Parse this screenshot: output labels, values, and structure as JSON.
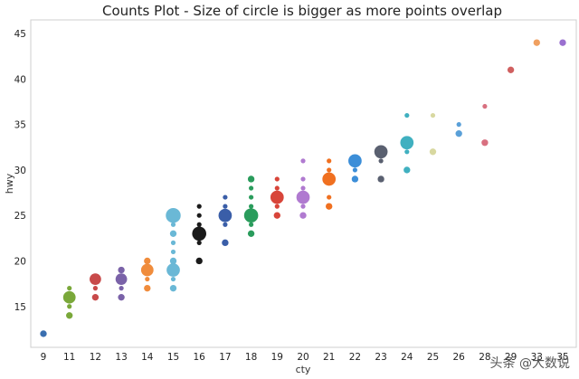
{
  "chart_data": {
    "type": "scatter",
    "title": "Counts Plot - Size of circle is bigger as more points overlap",
    "xlabel": "cty",
    "ylabel": "hwy",
    "categories": [
      "9",
      "11",
      "12",
      "13",
      "14",
      "15",
      "16",
      "17",
      "18",
      "19",
      "20",
      "21",
      "22",
      "23",
      "24",
      "25",
      "26",
      "28",
      "29",
      "33",
      "35"
    ],
    "x_tick_labels_visible": [
      "9",
      "11",
      "12",
      "13",
      "14",
      "15",
      "16",
      "17",
      "18",
      "19",
      "20",
      "21",
      "22",
      "23",
      "24",
      "25",
      "26",
      "28",
      "29",
      "33",
      "35"
    ],
    "y_ticks": [
      15,
      20,
      25,
      30,
      35,
      40,
      45
    ],
    "ylim": [
      10.5,
      46.5
    ],
    "grid": false,
    "legend": false,
    "colors": [
      "#3a6fb0",
      "#7aa83a",
      "#c84a4a",
      "#7a62a8",
      "#f08c3c",
      "#6ab8d6",
      "#1a1a1a",
      "#3a5ea8",
      "#2a9c5c",
      "#d8453a",
      "#b07ad0",
      "#f07020",
      "#3c8ed8",
      "#5a6070",
      "#40b0c0",
      "#d8d8a0",
      "#5aa0d8",
      "#d87080",
      "#d06060",
      "#f0a060",
      "#9a70d0"
    ],
    "points": [
      {
        "x": "9",
        "y": 12,
        "n": 2,
        "c": 0
      },
      {
        "x": "11",
        "y": 14,
        "n": 2,
        "c": 1
      },
      {
        "x": "11",
        "y": 15,
        "n": 1,
        "c": 1
      },
      {
        "x": "11",
        "y": 16,
        "n": 7,
        "c": 1
      },
      {
        "x": "11",
        "y": 17,
        "n": 1,
        "c": 1
      },
      {
        "x": "12",
        "y": 16,
        "n": 2,
        "c": 2
      },
      {
        "x": "12",
        "y": 17,
        "n": 1,
        "c": 2
      },
      {
        "x": "12",
        "y": 18,
        "n": 6,
        "c": 2
      },
      {
        "x": "13",
        "y": 16,
        "n": 2,
        "c": 3
      },
      {
        "x": "13",
        "y": 17,
        "n": 1,
        "c": 3
      },
      {
        "x": "13",
        "y": 18,
        "n": 6,
        "c": 3
      },
      {
        "x": "13",
        "y": 19,
        "n": 2,
        "c": 3
      },
      {
        "x": "14",
        "y": 17,
        "n": 2,
        "c": 4
      },
      {
        "x": "14",
        "y": 18,
        "n": 1,
        "c": 4
      },
      {
        "x": "14",
        "y": 19,
        "n": 7,
        "c": 4
      },
      {
        "x": "14",
        "y": 20,
        "n": 2,
        "c": 4
      },
      {
        "x": "15",
        "y": 17,
        "n": 2,
        "c": 5
      },
      {
        "x": "15",
        "y": 18,
        "n": 1,
        "c": 5
      },
      {
        "x": "15",
        "y": 19,
        "n": 8,
        "c": 5
      },
      {
        "x": "15",
        "y": 20,
        "n": 2,
        "c": 5
      },
      {
        "x": "15",
        "y": 21,
        "n": 1,
        "c": 5
      },
      {
        "x": "15",
        "y": 22,
        "n": 1,
        "c": 5
      },
      {
        "x": "15",
        "y": 23,
        "n": 2,
        "c": 5
      },
      {
        "x": "15",
        "y": 24,
        "n": 1,
        "c": 5
      },
      {
        "x": "15",
        "y": 25,
        "n": 10,
        "c": 5
      },
      {
        "x": "16",
        "y": 20,
        "n": 2,
        "c": 6
      },
      {
        "x": "16",
        "y": 22,
        "n": 1,
        "c": 6
      },
      {
        "x": "16",
        "y": 23,
        "n": 9,
        "c": 6
      },
      {
        "x": "16",
        "y": 24,
        "n": 1,
        "c": 6
      },
      {
        "x": "16",
        "y": 25,
        "n": 1,
        "c": 6
      },
      {
        "x": "16",
        "y": 26,
        "n": 1,
        "c": 6
      },
      {
        "x": "17",
        "y": 22,
        "n": 2,
        "c": 7
      },
      {
        "x": "17",
        "y": 24,
        "n": 1,
        "c": 7
      },
      {
        "x": "17",
        "y": 25,
        "n": 8,
        "c": 7
      },
      {
        "x": "17",
        "y": 26,
        "n": 1,
        "c": 7
      },
      {
        "x": "17",
        "y": 27,
        "n": 1,
        "c": 7
      },
      {
        "x": "18",
        "y": 23,
        "n": 2,
        "c": 8
      },
      {
        "x": "18",
        "y": 24,
        "n": 1,
        "c": 8
      },
      {
        "x": "18",
        "y": 25,
        "n": 9,
        "c": 8
      },
      {
        "x": "18",
        "y": 26,
        "n": 1,
        "c": 8
      },
      {
        "x": "18",
        "y": 27,
        "n": 1,
        "c": 8
      },
      {
        "x": "18",
        "y": 28,
        "n": 1,
        "c": 8
      },
      {
        "x": "18",
        "y": 29,
        "n": 2,
        "c": 8
      },
      {
        "x": "19",
        "y": 25,
        "n": 2,
        "c": 9
      },
      {
        "x": "19",
        "y": 26,
        "n": 1,
        "c": 9
      },
      {
        "x": "19",
        "y": 27,
        "n": 8,
        "c": 9
      },
      {
        "x": "19",
        "y": 28,
        "n": 1,
        "c": 9
      },
      {
        "x": "19",
        "y": 29,
        "n": 1,
        "c": 9
      },
      {
        "x": "20",
        "y": 25,
        "n": 2,
        "c": 10
      },
      {
        "x": "20",
        "y": 26,
        "n": 1,
        "c": 10
      },
      {
        "x": "20",
        "y": 27,
        "n": 8,
        "c": 10
      },
      {
        "x": "20",
        "y": 28,
        "n": 1,
        "c": 10
      },
      {
        "x": "20",
        "y": 29,
        "n": 1,
        "c": 10
      },
      {
        "x": "20",
        "y": 31,
        "n": 1,
        "c": 10
      },
      {
        "x": "21",
        "y": 26,
        "n": 2,
        "c": 11
      },
      {
        "x": "21",
        "y": 27,
        "n": 1,
        "c": 11
      },
      {
        "x": "21",
        "y": 29,
        "n": 8,
        "c": 11
      },
      {
        "x": "21",
        "y": 30,
        "n": 1,
        "c": 11
      },
      {
        "x": "21",
        "y": 31,
        "n": 1,
        "c": 11
      },
      {
        "x": "22",
        "y": 29,
        "n": 2,
        "c": 12
      },
      {
        "x": "22",
        "y": 30,
        "n": 1,
        "c": 12
      },
      {
        "x": "22",
        "y": 31,
        "n": 8,
        "c": 12
      },
      {
        "x": "23",
        "y": 29,
        "n": 2,
        "c": 13
      },
      {
        "x": "23",
        "y": 31,
        "n": 1,
        "c": 13
      },
      {
        "x": "23",
        "y": 32,
        "n": 8,
        "c": 13
      },
      {
        "x": "24",
        "y": 30,
        "n": 2,
        "c": 14
      },
      {
        "x": "24",
        "y": 32,
        "n": 1,
        "c": 14
      },
      {
        "x": "24",
        "y": 33,
        "n": 8,
        "c": 14
      },
      {
        "x": "24",
        "y": 36,
        "n": 1,
        "c": 14
      },
      {
        "x": "25",
        "y": 32,
        "n": 2,
        "c": 15
      },
      {
        "x": "25",
        "y": 36,
        "n": 1,
        "c": 15
      },
      {
        "x": "26",
        "y": 34,
        "n": 2,
        "c": 16
      },
      {
        "x": "26",
        "y": 35,
        "n": 1,
        "c": 16
      },
      {
        "x": "28",
        "y": 33,
        "n": 2,
        "c": 17
      },
      {
        "x": "28",
        "y": 37,
        "n": 1,
        "c": 17
      },
      {
        "x": "29",
        "y": 41,
        "n": 2,
        "c": 18
      },
      {
        "x": "33",
        "y": 44,
        "n": 2,
        "c": 19
      },
      {
        "x": "35",
        "y": 44,
        "n": 2,
        "c": 20
      }
    ]
  },
  "watermark": "头条 @大数说"
}
